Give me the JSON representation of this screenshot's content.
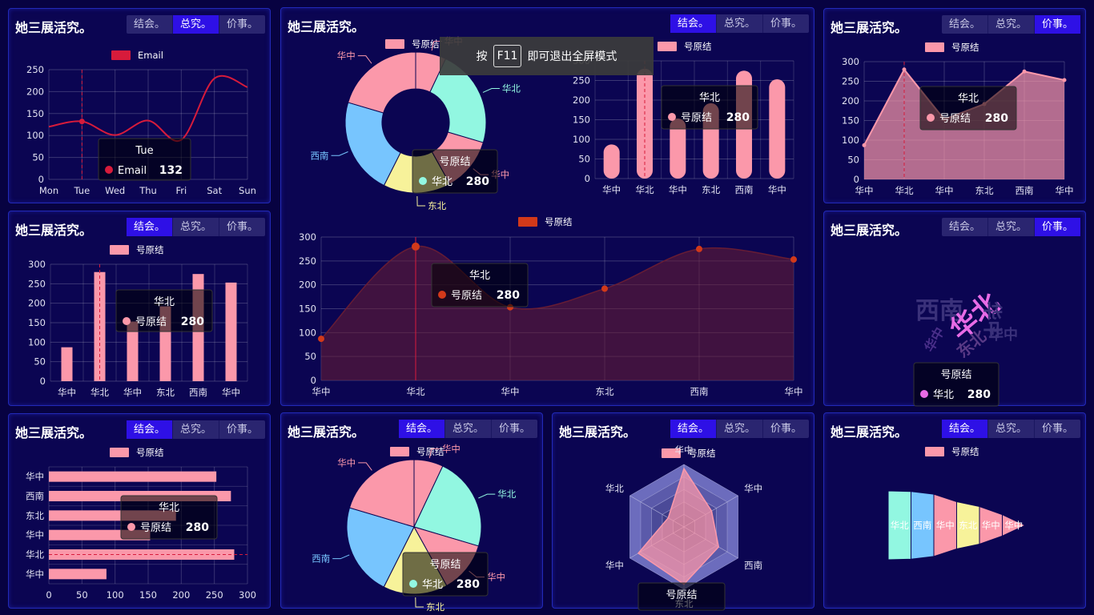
{
  "panel_title": "她三展活究。",
  "tabs": [
    "结会。",
    "总究。",
    "价事。"
  ],
  "fullscreen_hint": {
    "prefix": "按",
    "key": "F11",
    "suffix": "即可退出全屏模式"
  },
  "colors": {
    "bg": "#070241",
    "panel": "#0b0552",
    "tab_active": "#2e10e6",
    "line_red": "#d71b3b",
    "pink": "#fb98aa",
    "orange": "#d2391a",
    "purple": "#e86be6"
  },
  "charts": {
    "line_email": {
      "type": "line",
      "legend": "Email",
      "categories": [
        "Mon",
        "Tue",
        "Wed",
        "Thu",
        "Fri",
        "Sat",
        "Sun"
      ],
      "values": [
        120,
        132,
        101,
        134,
        90,
        230,
        210
      ],
      "ylim": [
        0,
        250
      ],
      "yticks": [
        "0",
        "50",
        "100",
        "150",
        "200",
        "250"
      ],
      "tooltip": {
        "title": "Tue",
        "series": "Email",
        "value": "132"
      }
    },
    "bar_small": {
      "type": "bar",
      "legend": "号原结",
      "categories": [
        "华中",
        "华北",
        "华中",
        "东北",
        "西南",
        "华中"
      ],
      "values": [
        87,
        280,
        153,
        192,
        275,
        253
      ],
      "ylim": [
        0,
        300
      ],
      "yticks": [
        "0",
        "50",
        "100",
        "150",
        "200",
        "250",
        "300"
      ],
      "tooltip": {
        "title": "华北",
        "series": "号原结",
        "value": "280"
      }
    },
    "hbar": {
      "type": "bar",
      "legend": "号原结",
      "categories": [
        "华中",
        "华北",
        "华中",
        "东北",
        "西南",
        "华中"
      ],
      "values": [
        87,
        280,
        153,
        192,
        275,
        253
      ],
      "xlim": [
        0,
        300
      ],
      "xticks": [
        "0",
        "50",
        "100",
        "150",
        "200",
        "250",
        "300"
      ],
      "tooltip": {
        "title": "华北",
        "series": "号原结",
        "value": "280"
      }
    },
    "donut": {
      "type": "pie",
      "legend": "号原结",
      "slices": [
        {
          "name": "华中",
          "value": 87,
          "color": "#fb98aa"
        },
        {
          "name": "华北",
          "value": 280,
          "color": "#92f7e1"
        },
        {
          "name": "华中",
          "value": 153,
          "color": "#fb98aa"
        },
        {
          "name": "东北",
          "value": 192,
          "color": "#f7f29a"
        },
        {
          "name": "西南",
          "value": 275,
          "color": "#77c5fe"
        },
        {
          "name": "华中",
          "value": 253,
          "color": "#fb98aa"
        }
      ],
      "tooltip": {
        "title": "号原结",
        "series": "华北",
        "value": "280"
      }
    },
    "round_bar": {
      "type": "bar",
      "legend": "号原结",
      "categories": [
        "华中",
        "华北",
        "华中",
        "东北",
        "西南",
        "华中"
      ],
      "values": [
        87,
        280,
        153,
        192,
        275,
        253
      ],
      "ylim": [
        0,
        300
      ],
      "yticks": [
        "0",
        "50",
        "100",
        "150",
        "200",
        "250",
        "300"
      ],
      "tooltip": {
        "title": "华北",
        "series": "号原结",
        "value": "280"
      }
    },
    "area_big": {
      "type": "area",
      "legend": "号原结",
      "categories": [
        "华中",
        "华北",
        "华中",
        "东北",
        "西南",
        "华中"
      ],
      "values": [
        87,
        280,
        153,
        192,
        275,
        253
      ],
      "ylim": [
        0,
        300
      ],
      "yticks": [
        "0",
        "50",
        "100",
        "150",
        "200",
        "250",
        "300"
      ],
      "tooltip": {
        "title": "华北",
        "series": "号原结",
        "value": "280"
      }
    },
    "area_small": {
      "type": "area",
      "legend": "号原结",
      "categories": [
        "华中",
        "华北",
        "华中",
        "东北",
        "西南",
        "华中"
      ],
      "values": [
        87,
        280,
        153,
        192,
        275,
        253
      ],
      "ylim": [
        0,
        300
      ],
      "yticks": [
        "0",
        "50",
        "100",
        "150",
        "200",
        "250",
        "300"
      ],
      "tooltip": {
        "title": "华北",
        "series": "号原结",
        "value": "280"
      }
    },
    "wordcloud": {
      "type": "other",
      "words": [
        "西南",
        "华北",
        "华中",
        "东北",
        "华中",
        "华中"
      ],
      "tooltip": {
        "title": "号原结",
        "series": "华北",
        "value": "280"
      }
    },
    "pie": {
      "type": "pie",
      "legend": "号原结",
      "slices": [
        {
          "name": "华中",
          "value": 87,
          "color": "#fb98aa"
        },
        {
          "name": "华北",
          "value": 280,
          "color": "#92f7e1"
        },
        {
          "name": "华中",
          "value": 153,
          "color": "#fb98aa"
        },
        {
          "name": "东北",
          "value": 192,
          "color": "#f7f29a"
        },
        {
          "name": "西南",
          "value": 275,
          "color": "#77c5fe"
        },
        {
          "name": "华中",
          "value": 253,
          "color": "#fb98aa"
        }
      ],
      "tooltip": {
        "title": "号原结",
        "series": "华北",
        "value": "280"
      }
    },
    "radar": {
      "type": "other",
      "legend": "号原结",
      "indicators": [
        "华中",
        "华中",
        "西南",
        "东北",
        "华中",
        "华北"
      ],
      "values": [
        280,
        153,
        192,
        275,
        253,
        87
      ],
      "max": 300,
      "tooltip": {
        "title": "号原结"
      }
    },
    "funnel": {
      "type": "other",
      "legend": "号原结",
      "labels": [
        "华北",
        "西南",
        "华中",
        "东北",
        "华中",
        "华中"
      ],
      "values": [
        280,
        275,
        253,
        192,
        153,
        87
      ]
    }
  },
  "panels": [
    {
      "id": "p1",
      "active_tab": 1
    },
    {
      "id": "p2",
      "active_tab": 0
    },
    {
      "id": "p3",
      "active_tab": 0
    },
    {
      "id": "p4",
      "active_tab": 0
    },
    {
      "id": "p5",
      "active_tab": 2
    },
    {
      "id": "p6",
      "active_tab": 2
    },
    {
      "id": "p7",
      "active_tab": 0
    },
    {
      "id": "p8",
      "active_tab": 0
    },
    {
      "id": "p9",
      "active_tab": 0
    }
  ]
}
